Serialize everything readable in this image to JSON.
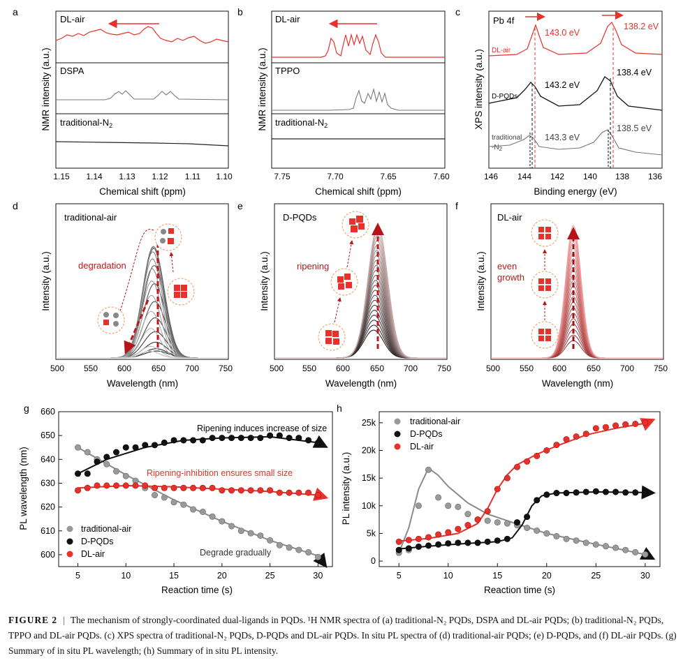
{
  "panels": {
    "a": {
      "letter": "a",
      "ylabel": "NMR intensity (a.u.)",
      "xlabel": "Chemical shift (ppm)",
      "ticks": [
        "1.15",
        "1.14",
        "1.13",
        "1.12",
        "1.11",
        "1.10"
      ],
      "traces": [
        "DL-air",
        "DSPA",
        "traditional-N2"
      ]
    },
    "b": {
      "letter": "b",
      "ylabel": "NMR intensity (a.u.)",
      "xlabel": "Chemical shift (ppm)",
      "ticks": [
        "7.75",
        "7.70",
        "7.65",
        "7.60"
      ],
      "traces": [
        "DL-air",
        "TPPO",
        "traditional-N2"
      ]
    },
    "c": {
      "letter": "c",
      "ylabel": "XPS intensity (a.u.)",
      "xlabel": "Binding energy (eV)",
      "ticks": [
        "146",
        "144",
        "142",
        "140",
        "138",
        "136"
      ],
      "title": "Pb 4f",
      "traces": [
        "DL-air",
        "D-PQDs",
        "traditional-N2"
      ],
      "peaks": [
        "143.0 eV",
        "138.2 eV",
        "143.2 eV",
        "138.4 eV",
        "143.3 eV",
        "138.5 eV"
      ]
    },
    "d": {
      "letter": "d",
      "title": "traditional-air",
      "annotation": "degradation",
      "ylabel": "Intensity (a.u.)",
      "xlabel": "Wavelength (nm)",
      "ticks": [
        "500",
        "550",
        "600",
        "650",
        "700",
        "750"
      ]
    },
    "e": {
      "letter": "e",
      "title": "D-PQDs",
      "annotation": "ripening",
      "ylabel": "Intensity (a.u.)",
      "xlabel": "Wavelength (nm)",
      "ticks": [
        "500",
        "550",
        "600",
        "650",
        "700",
        "750"
      ]
    },
    "f": {
      "letter": "f",
      "title": "DL-air",
      "annotation1": "even",
      "annotation2": "growth",
      "ylabel": "Intensity (a.u.)",
      "xlabel": "Wavelength (nm)",
      "ticks": [
        "500",
        "550",
        "600",
        "650",
        "700",
        "750"
      ]
    },
    "g": {
      "letter": "g",
      "ylabel": "PL wavelength (nm)",
      "xlabel": "Reaction time (s)",
      "xticks": [
        "5",
        "10",
        "15",
        "20",
        "25",
        "30"
      ],
      "yticks": [
        "600",
        "610",
        "620",
        "630",
        "640",
        "650",
        "660"
      ],
      "ann_black": "Ripening induces increase of size",
      "ann_red": "Ripening-inhibition ensures small size",
      "ann_gray": "Degrade gradually",
      "legend": [
        "traditional-air",
        "D-PQDs",
        "DL-air"
      ]
    },
    "h": {
      "letter": "h",
      "ylabel": "PL intensity (a.u.)",
      "xlabel": "Reaction time (s)",
      "xticks": [
        "5",
        "10",
        "15",
        "20",
        "25",
        "30"
      ],
      "yticks": [
        "0",
        "5k",
        "10k",
        "15k",
        "20k",
        "25k"
      ],
      "legend": [
        "traditional-air",
        "D-PQDs",
        "DL-air"
      ]
    }
  },
  "chart_data": [
    {
      "type": "line",
      "title": "g",
      "xlabel": "Reaction time (s)",
      "ylabel": "PL wavelength (nm)",
      "xlim": [
        3,
        31.5
      ],
      "ylim": [
        595,
        660
      ],
      "series": [
        {
          "name": "traditional-air",
          "x": [
            5,
            6,
            7,
            8,
            9,
            10,
            11,
            12,
            13,
            14,
            15,
            16,
            17,
            18,
            19,
            20,
            21,
            22,
            23,
            24,
            25,
            26,
            27,
            28,
            29,
            30
          ],
          "values": [
            645,
            643,
            640,
            638,
            635,
            633,
            631,
            628,
            625,
            624,
            622,
            621,
            619,
            618,
            616,
            614,
            612,
            610,
            609,
            608,
            606,
            604,
            603,
            602,
            601,
            599
          ]
        },
        {
          "name": "D-PQDs",
          "x": [
            5,
            6,
            7,
            8,
            9,
            10,
            11,
            12,
            13,
            14,
            15,
            16,
            17,
            18,
            19,
            20,
            21,
            22,
            23,
            24,
            25,
            26,
            27,
            28,
            29,
            30
          ],
          "values": [
            634,
            634,
            639,
            641,
            643,
            645,
            645,
            646,
            646,
            647,
            648,
            648,
            648,
            648,
            649,
            649,
            649,
            649,
            649,
            649,
            650,
            650,
            649,
            649,
            648,
            647
          ]
        },
        {
          "name": "DL-air",
          "x": [
            5,
            6,
            7,
            8,
            9,
            10,
            11,
            12,
            13,
            14,
            15,
            16,
            17,
            18,
            19,
            20,
            21,
            22,
            23,
            24,
            25,
            26,
            27,
            28,
            29,
            30
          ],
          "values": [
            627,
            628,
            629,
            629,
            629,
            629,
            629,
            629,
            628,
            628,
            628,
            628,
            628,
            628,
            628,
            627,
            627,
            627,
            627,
            627,
            627,
            626,
            626,
            626,
            626,
            625
          ]
        }
      ]
    },
    {
      "type": "line",
      "title": "h",
      "xlabel": "Reaction time (s)",
      "ylabel": "PL intensity (a.u.)",
      "xlim": [
        3,
        31.5
      ],
      "ylim": [
        -1000,
        27000
      ],
      "series": [
        {
          "name": "traditional-air",
          "x": [
            5,
            6,
            7,
            8,
            9,
            10,
            11,
            12,
            13,
            14,
            15,
            16,
            17,
            18,
            19,
            20,
            21,
            22,
            23,
            24,
            25,
            26,
            27,
            28,
            29,
            30
          ],
          "values": [
            1500,
            2000,
            10000,
            16500,
            11500,
            10000,
            9800,
            8500,
            7500,
            7300,
            7000,
            6800,
            6500,
            6000,
            5500,
            5000,
            4500,
            4000,
            3700,
            3300,
            3000,
            2700,
            2400,
            2000,
            1600,
            1200
          ]
        },
        {
          "name": "D-PQDs",
          "x": [
            5,
            6,
            7,
            8,
            9,
            10,
            11,
            12,
            13,
            14,
            15,
            16,
            17,
            18,
            19,
            20,
            21,
            22,
            23,
            24,
            25,
            26,
            27,
            28,
            29,
            30
          ],
          "values": [
            2000,
            2300,
            2600,
            2800,
            3000,
            3200,
            3300,
            3300,
            3300,
            3500,
            3700,
            4000,
            7000,
            8000,
            11000,
            12000,
            12300,
            12300,
            12400,
            12500,
            12600,
            12500,
            12500,
            12400,
            12400,
            12300
          ]
        },
        {
          "name": "DL-air",
          "x": [
            5,
            6,
            7,
            8,
            9,
            10,
            11,
            12,
            13,
            14,
            15,
            16,
            17,
            18,
            19,
            20,
            21,
            22,
            23,
            24,
            25,
            26,
            27,
            28,
            29,
            30
          ],
          "values": [
            3500,
            3800,
            4000,
            4300,
            4800,
            5200,
            5800,
            6500,
            7500,
            9000,
            13000,
            15000,
            17000,
            18000,
            19000,
            20000,
            21000,
            22000,
            22500,
            23000,
            24000,
            24200,
            24500,
            24700,
            24800,
            25000
          ]
        }
      ]
    }
  ],
  "caption": {
    "label": "FIGURE 2",
    "separator": "|",
    "text": "The mechanism of strongly-coordinated dual-ligands in PQDs. ¹H NMR spectra of (a) traditional-N₂ PQDs, DSPA and DL-air PQDs; (b) traditional-N₂ PQDs, TPPO and DL-air PQDs. (c) XPS spectra of traditional-N₂ PQDs, D-PQDs and DL-air PQDs. In situ PL spectra of (d) traditional-air PQDs; (e) D-PQDs, and (f) DL-air PQDs. (g) Summary of in situ PL wavelength; (h) Summary of in situ PL intensity."
  },
  "colors": {
    "red": "#e8312b",
    "black": "#111111",
    "gray": "#8a8a8a",
    "dark": "#222222"
  }
}
